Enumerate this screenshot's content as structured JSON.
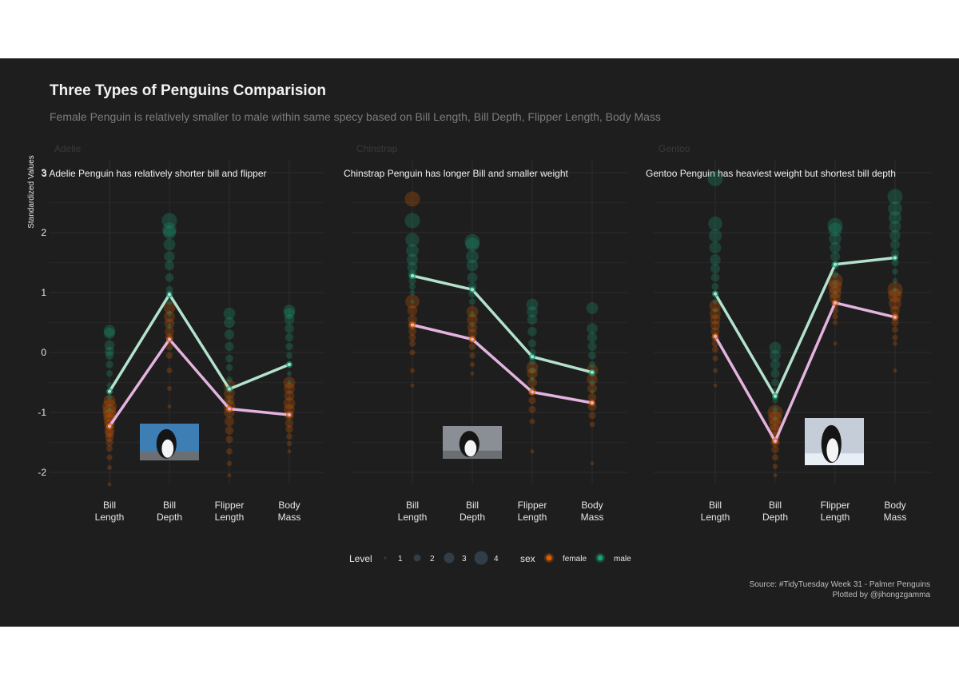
{
  "title": "Three Types of Penguins Comparision",
  "subtitle": "Female Penguin is relatively smaller to male within same specy based on Bill Length, Bill Depth, Flipper Length, Body Mass",
  "caption": [
    "Source: #TidyTuesday Week 31 - Palmer Penguins",
    "Plotted by @jihongzgamma"
  ],
  "colors": {
    "background": "#1e1e1e",
    "grid": "#2c2c2c",
    "female_point": "#d95f02",
    "male_point": "#1b9e77",
    "female_line": "#e4b3df",
    "male_line": "#b3e2cd",
    "text": "#e6e6e6",
    "strip": "#3a3a3a"
  },
  "chart_data": {
    "type": "line",
    "ylabel": "Standardized Values",
    "ylim": [
      -2.3,
      3.2
    ],
    "yticks": [
      "-2",
      "-1",
      "0",
      "1",
      "2",
      "3"
    ],
    "categories": [
      [
        "Bill",
        "Length"
      ],
      [
        "Bill",
        "Depth"
      ],
      [
        "Flipper",
        "Length"
      ],
      [
        "Body",
        "Mass"
      ]
    ],
    "panels": [
      {
        "strip": "Adelie",
        "annotation": "3 Adelie Penguin has relatively shorter bill and flipper",
        "image": "adelie-penguin-photo",
        "series": [
          {
            "name": "female",
            "values": [
              -1.23,
              0.22,
              -0.94,
              -1.04
            ]
          },
          {
            "name": "male",
            "values": [
              -0.65,
              0.97,
              -0.61,
              -0.2
            ]
          }
        ],
        "points": {
          "female": [
            [
              -2.2,
              -1.92,
              -1.75,
              -1.6,
              -1.5,
              -1.42,
              -1.35,
              -1.3,
              -1.2,
              -1.12,
              -1.05,
              -0.98,
              -0.9,
              -0.8
            ],
            [
              -0.9,
              -0.6,
              -0.3,
              -0.05,
              0.1,
              0.25,
              0.35,
              0.48,
              0.6,
              0.75
            ],
            [
              -2.05,
              -1.85,
              -1.65,
              -1.45,
              -1.3,
              -1.15,
              -1.0,
              -0.9,
              -0.8,
              -0.68,
              -0.55
            ],
            [
              -1.65,
              -1.52,
              -1.4,
              -1.28,
              -1.18,
              -1.05,
              -0.95,
              -0.85,
              -0.72,
              -0.6,
              -0.5
            ]
          ],
          "male": [
            [
              -0.95,
              -0.75,
              -0.55,
              -0.35,
              -0.2,
              -0.05,
              0.02,
              0.12,
              0.32,
              0.36
            ],
            [
              0.45,
              0.65,
              0.85,
              1.05,
              1.25,
              1.45,
              1.6,
              1.8,
              2.0,
              2.05,
              2.2
            ],
            [
              -0.8,
              -0.6,
              -0.45,
              -0.25,
              -0.1,
              0.1,
              0.3,
              0.5,
              0.65
            ],
            [
              -0.5,
              -0.35,
              -0.2,
              -0.05,
              0.1,
              0.25,
              0.4,
              0.55,
              0.65,
              0.7
            ]
          ]
        }
      },
      {
        "strip": "Chinstrap",
        "annotation": "Chinstrap Penguin has longer Bill and smaller weight",
        "image": "chinstrap-penguin-photo",
        "series": [
          {
            "name": "female",
            "values": [
              0.46,
              0.22,
              -0.66,
              -0.84
            ]
          },
          {
            "name": "male",
            "values": [
              1.28,
              1.05,
              -0.07,
              -0.33
            ]
          }
        ],
        "points": {
          "female": [
            [
              -0.55,
              -0.3,
              0.0,
              0.15,
              0.25,
              0.35,
              0.45,
              0.55,
              0.7,
              0.85,
              2.56
            ],
            [
              -0.35,
              -0.2,
              -0.05,
              0.1,
              0.22,
              0.32,
              0.42,
              0.55,
              0.68
            ],
            [
              -1.65,
              -1.15,
              -0.95,
              -0.8,
              -0.65,
              -0.5,
              -0.35,
              -0.25
            ],
            [
              -1.85,
              -1.2,
              -1.05,
              -0.9,
              -0.75,
              -0.6,
              -0.45,
              -0.3
            ]
          ],
          "male": [
            [
              0.85,
              1.0,
              1.1,
              1.2,
              1.3,
              1.42,
              1.55,
              1.7,
              1.88,
              2.2
            ],
            [
              0.45,
              0.65,
              0.85,
              0.98,
              1.1,
              1.25,
              1.45,
              1.6,
              1.8,
              1.85
            ],
            [
              -0.6,
              -0.45,
              -0.3,
              -0.15,
              0.0,
              0.15,
              0.35,
              0.55,
              0.68,
              0.8
            ],
            [
              -0.65,
              -0.5,
              -0.35,
              -0.2,
              -0.05,
              0.1,
              0.25,
              0.4,
              0.74
            ]
          ]
        }
      },
      {
        "strip": "Gentoo",
        "annotation": "Gentoo Penguin has heaviest weight but shortest bill depth",
        "image": "gentoo-penguin-photo",
        "series": [
          {
            "name": "female",
            "values": [
              0.27,
              -1.48,
              0.83,
              0.59
            ]
          },
          {
            "name": "male",
            "values": [
              0.98,
              -0.73,
              1.47,
              1.58
            ]
          }
        ],
        "points": {
          "female": [
            [
              -0.55,
              -0.3,
              -0.1,
              0.05,
              0.15,
              0.25,
              0.35,
              0.45,
              0.55,
              0.65,
              0.78
            ],
            [
              -2.05,
              -1.9,
              -1.75,
              -1.62,
              -1.5,
              -1.4,
              -1.3,
              -1.2,
              -1.1,
              -1.0
            ],
            [
              0.15,
              0.5,
              0.6,
              0.7,
              0.8,
              0.9,
              1.0,
              1.1,
              1.2
            ],
            [
              -0.3,
              0.15,
              0.25,
              0.38,
              0.5,
              0.6,
              0.7,
              0.82,
              0.95,
              1.05
            ]
          ],
          "male": [
            [
              0.7,
              0.85,
              0.98,
              1.1,
              1.25,
              1.4,
              1.55,
              1.75,
              1.95,
              2.15,
              2.9
            ],
            [
              -1.1,
              -0.95,
              -0.8,
              -0.65,
              -0.5,
              -0.35,
              -0.2,
              -0.05,
              0.08
            ],
            [
              1.0,
              1.15,
              1.3,
              1.45,
              1.6,
              1.75,
              1.9,
              2.05,
              2.12
            ],
            [
              1.05,
              1.2,
              1.35,
              1.5,
              1.65,
              1.8,
              1.95,
              2.1,
              2.25,
              2.4,
              2.6
            ]
          ]
        }
      }
    ],
    "legend": {
      "position": "bottom",
      "size_title": "Level",
      "size_items": [
        "1",
        "2",
        "3",
        "4"
      ],
      "color_title": "sex",
      "color_items": [
        "female",
        "male"
      ]
    }
  }
}
